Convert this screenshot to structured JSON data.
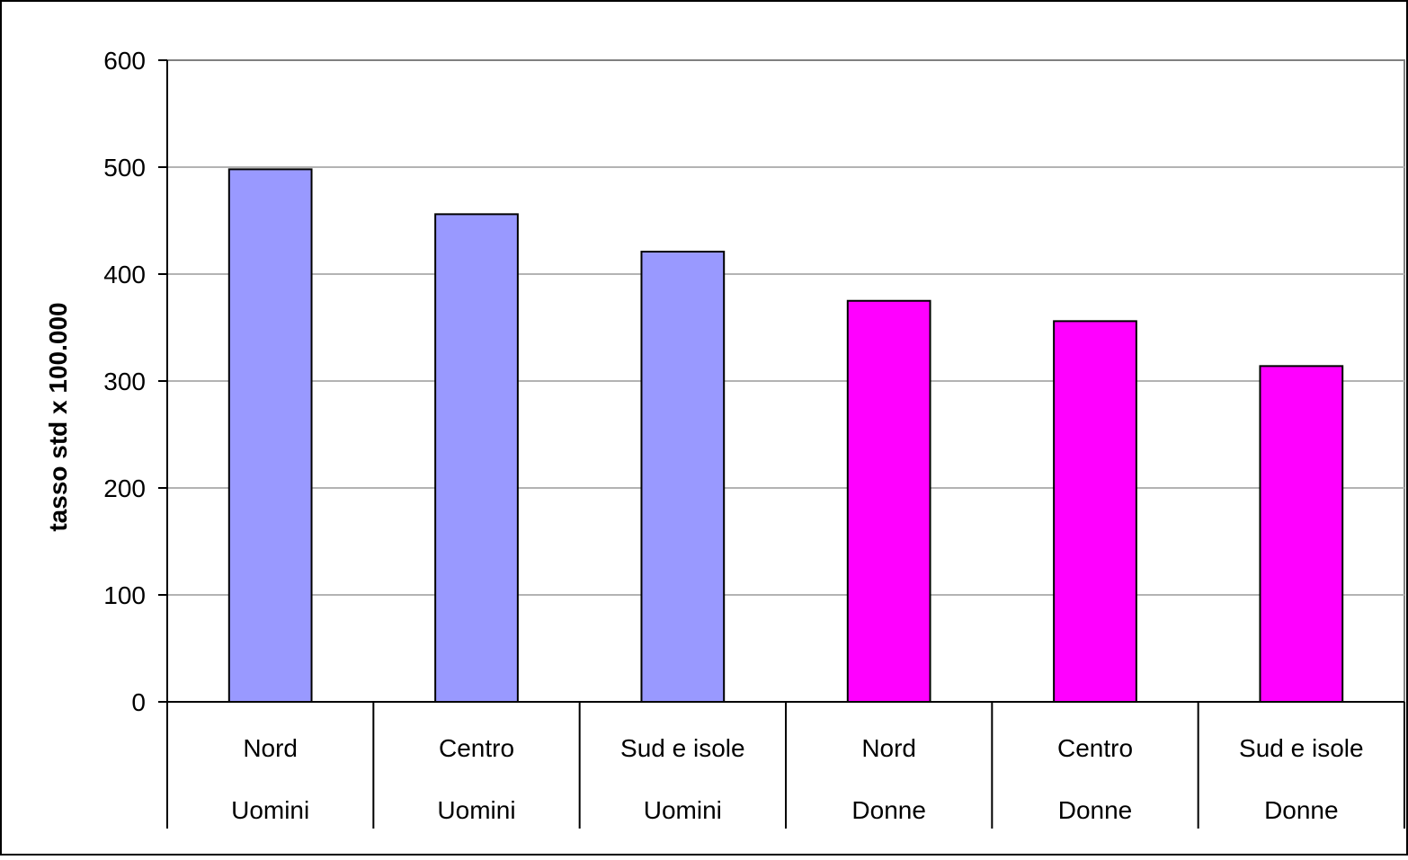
{
  "chart_data": {
    "type": "bar",
    "ylabel": "tasso std x 100.000",
    "xlabel": "",
    "ylim": [
      0,
      600
    ],
    "yticks": [
      0,
      100,
      200,
      300,
      400,
      500,
      600
    ],
    "grid": true,
    "legend": "none",
    "categories": [
      {
        "region": "Nord",
        "group": "Uomini",
        "value": 498,
        "color": "#9999ff"
      },
      {
        "region": "Centro",
        "group": "Uomini",
        "value": 456,
        "color": "#9999ff"
      },
      {
        "region": "Sud e isole",
        "group": "Uomini",
        "value": 421,
        "color": "#9999ff"
      },
      {
        "region": "Nord",
        "group": "Donne",
        "value": 375,
        "color": "#ff00ff"
      },
      {
        "region": "Centro",
        "group": "Donne",
        "value": 356,
        "color": "#ff00ff"
      },
      {
        "region": "Sud e isole",
        "group": "Donne",
        "value": 314,
        "color": "#ff00ff"
      }
    ]
  }
}
